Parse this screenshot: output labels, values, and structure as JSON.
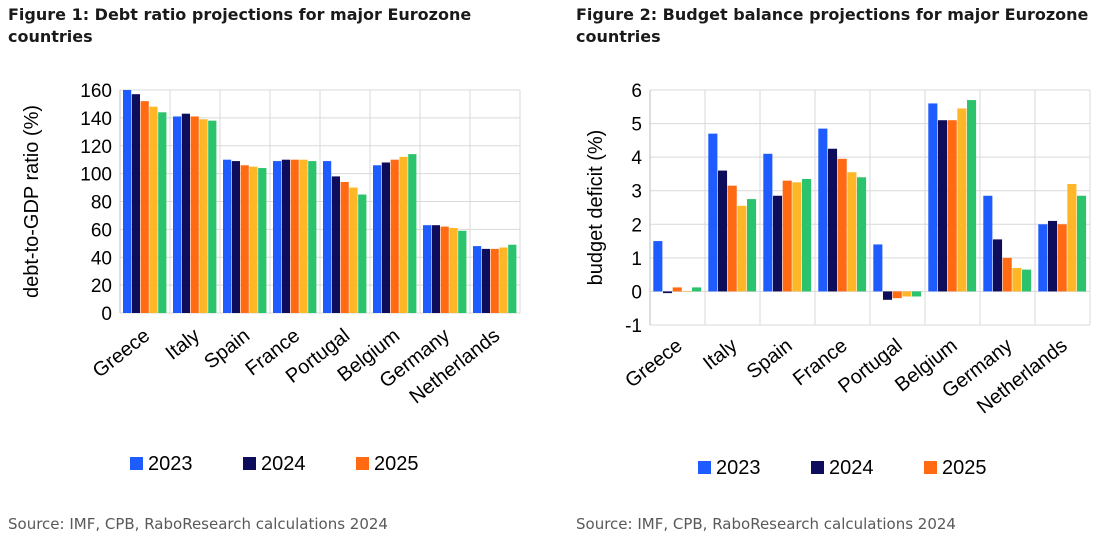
{
  "chart_data": [
    {
      "type": "bar",
      "title": "Figure 1: Debt ratio projections for major Eurozone countries",
      "ylabel": "debt-to-GDP ratio (%)",
      "xlabel": "",
      "ylim": [
        0,
        160
      ],
      "yticks": [
        "0",
        "20",
        "40",
        "60",
        "80",
        "100",
        "120",
        "140",
        "160"
      ],
      "grid": true,
      "legend": "bottom",
      "categories": [
        "Greece",
        "Italy",
        "Spain",
        "France",
        "Portugal",
        "Belgium",
        "Germany",
        "Netherlands"
      ],
      "series": [
        {
          "name": "2023",
          "color": "#1f5cff",
          "values": [
            160,
            141,
            110,
            109,
            109,
            106,
            63,
            48
          ]
        },
        {
          "name": "2024",
          "color": "#0d0d5c",
          "values": [
            157,
            143,
            109,
            110,
            98,
            108,
            63,
            46
          ]
        },
        {
          "name": "2025",
          "color": "#ff6a13",
          "values": [
            152,
            141,
            106,
            110,
            94,
            110,
            62,
            46
          ]
        },
        {
          "color": "#ffb627",
          "values": [
            148,
            139,
            105,
            110,
            90,
            112,
            61,
            47
          ]
        },
        {
          "color": "#2bc36b",
          "values": [
            144,
            138,
            104,
            109,
            85,
            114,
            59,
            49
          ]
        }
      ],
      "source": "Source: IMF, CPB, RaboResearch calculations 2024"
    },
    {
      "type": "bar",
      "title": "Figure 2: Budget balance projections for major Eurozone countries",
      "ylabel": "budget deficit (%)",
      "xlabel": "",
      "ylim": [
        -1,
        6
      ],
      "yticks": [
        "-1",
        "0",
        "1",
        "2",
        "3",
        "4",
        "5",
        "6"
      ],
      "grid": true,
      "legend": "bottom",
      "categories": [
        "Greece",
        "Italy",
        "Spain",
        "France",
        "Portugal",
        "Belgium",
        "Germany",
        "Netherlands"
      ],
      "series": [
        {
          "name": "2023",
          "color": "#1f5cff",
          "values": [
            1.5,
            4.7,
            4.1,
            4.85,
            1.4,
            5.6,
            2.85,
            2.0
          ]
        },
        {
          "name": "2024",
          "color": "#0d0d5c",
          "values": [
            -0.05,
            3.6,
            2.85,
            4.25,
            -0.25,
            5.1,
            1.55,
            2.1
          ]
        },
        {
          "name": "2025",
          "color": "#ff6a13",
          "values": [
            0.12,
            3.15,
            3.3,
            3.95,
            -0.2,
            5.1,
            1.0,
            2.0
          ]
        },
        {
          "color": "#ffb627",
          "values": [
            0.0,
            2.55,
            3.25,
            3.55,
            -0.15,
            5.45,
            0.7,
            3.2
          ]
        },
        {
          "color": "#2bc36b",
          "values": [
            0.12,
            2.75,
            3.35,
            3.4,
            -0.15,
            5.7,
            0.65,
            2.85
          ]
        }
      ],
      "source": "Source: IMF, CPB, RaboResearch calculations 2024"
    }
  ]
}
